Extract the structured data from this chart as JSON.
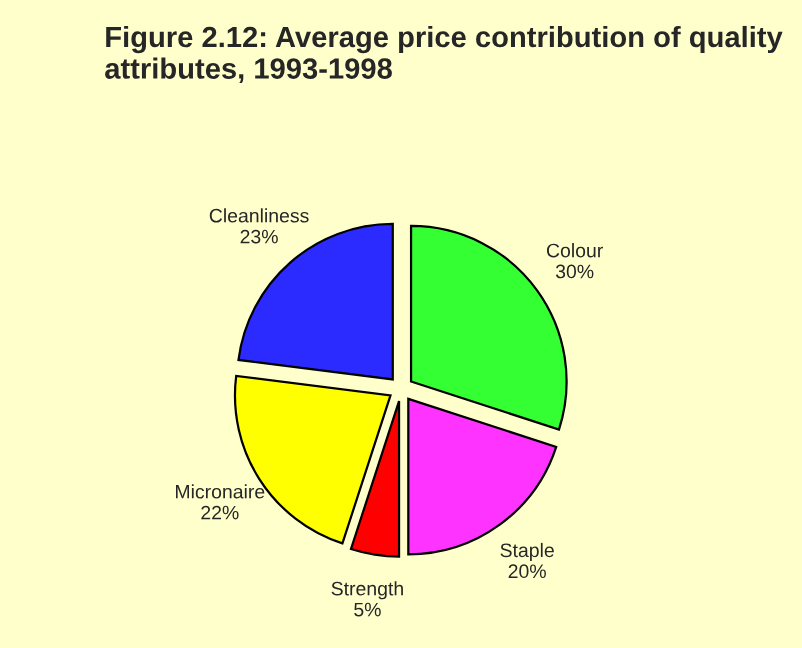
{
  "chart_data": {
    "type": "pie",
    "title": "Figure 2.12: Average price contribution of quality attributes, 1993-1998",
    "categories": [
      "Colour",
      "Staple",
      "Strength",
      "Micronaire",
      "Cleanliness"
    ],
    "values": [
      30,
      20,
      5,
      22,
      23
    ],
    "value_labels": [
      "30%",
      "20%",
      "5%",
      "22%",
      "23%"
    ],
    "colors": [
      "#33ff33",
      "#ff33ff",
      "#ff0000",
      "#ffff00",
      "#2b2bff"
    ],
    "legend": false
  }
}
